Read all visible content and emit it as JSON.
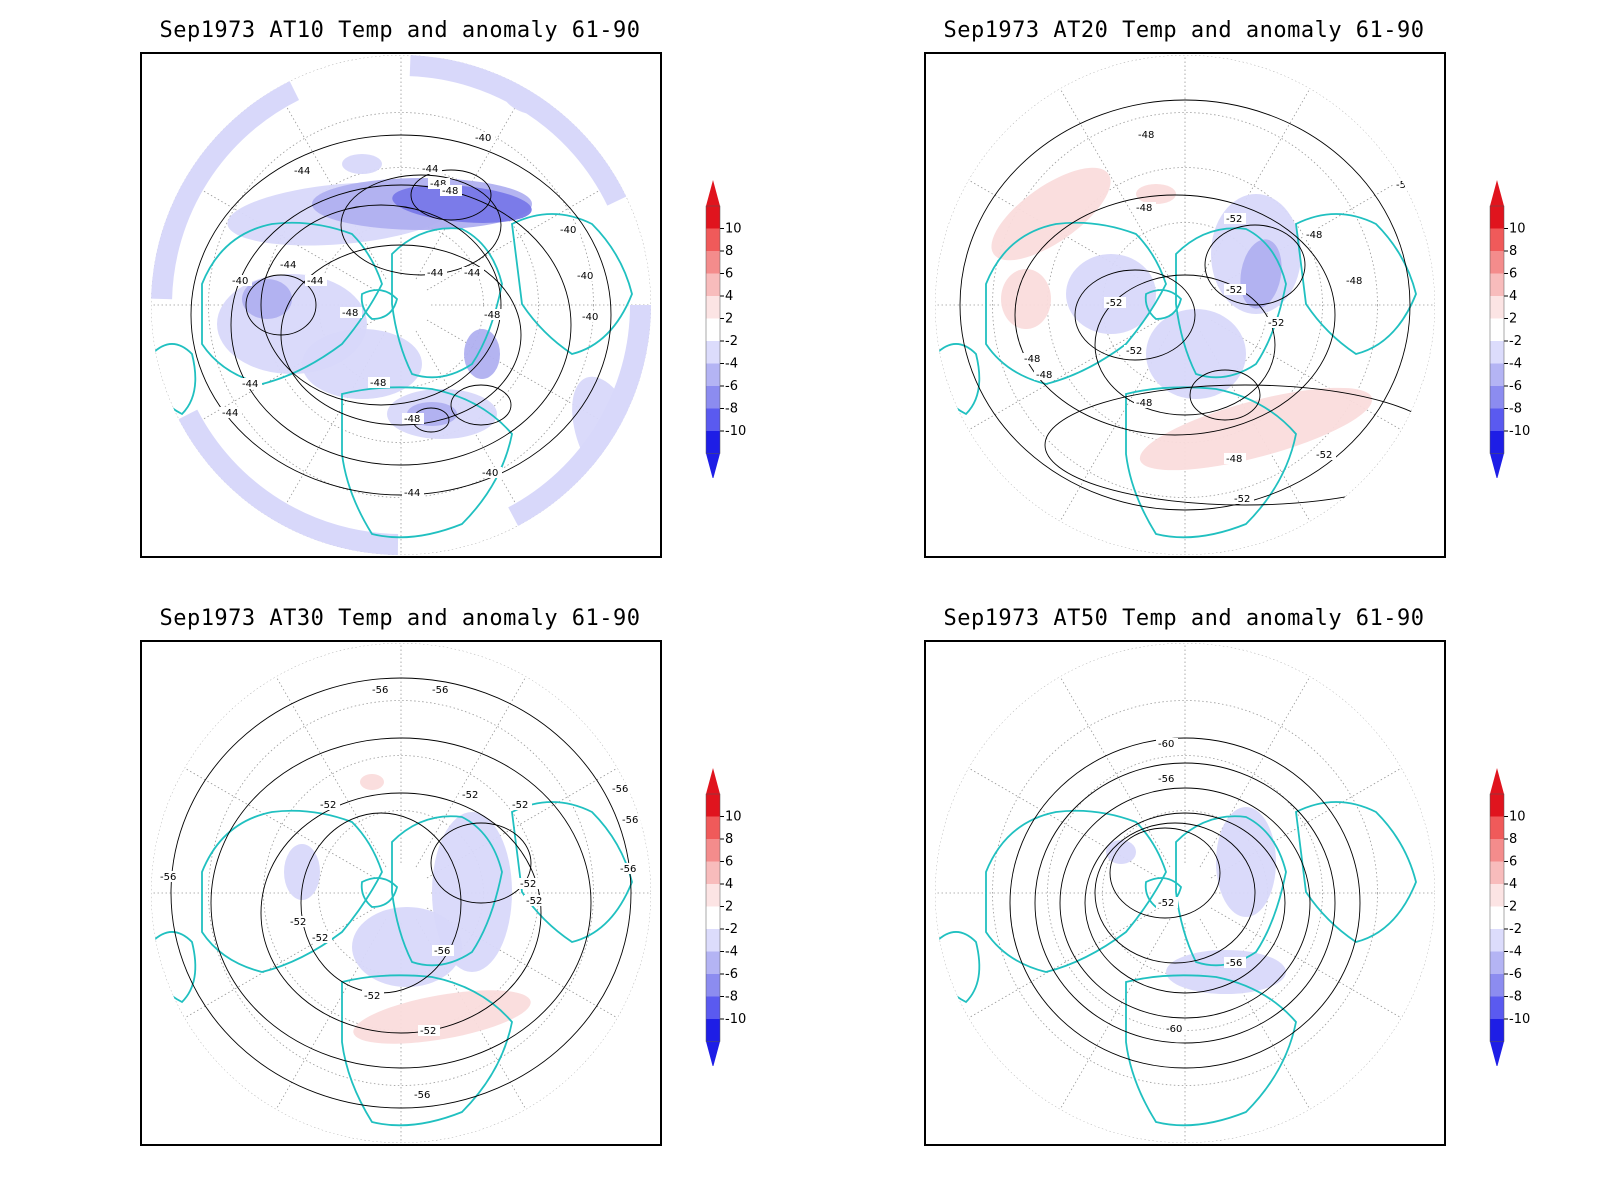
{
  "panels": [
    {
      "title": "Sep1973 AT10 Temp and anomaly 61-90",
      "contour_labels": [
        "-40",
        "-44",
        "-48",
        "-40",
        "-44",
        "-48",
        "-44",
        "-44",
        "-48",
        "-48",
        "-44",
        "-44",
        "-48",
        "-40",
        "-40",
        "-44",
        "-44",
        "-48",
        "-40",
        "-40",
        "-44"
      ],
      "shading": [
        {
          "sign": "neg",
          "level": "-2"
        },
        {
          "sign": "neg",
          "level": "-4"
        },
        {
          "sign": "neg",
          "level": "-6"
        }
      ]
    },
    {
      "title": "Sep1973 AT20 Temp and anomaly 61-90",
      "contour_labels": [
        "-48",
        "-48",
        "-52",
        "-48",
        "-52",
        "-52",
        "-52",
        "-52",
        "-48",
        "-48",
        "-48",
        "-52",
        "-48",
        "-52",
        "-52",
        "-48"
      ],
      "shading": [
        {
          "sign": "pos",
          "level": "2"
        },
        {
          "sign": "neg",
          "level": "-2"
        },
        {
          "sign": "neg",
          "level": "-4"
        }
      ]
    },
    {
      "title": "Sep1973 AT30 Temp and anomaly 61-90",
      "contour_labels": [
        "-56",
        "-56",
        "-52",
        "-52",
        "-52",
        "-56",
        "-56",
        "-56",
        "-56",
        "-52",
        "-52",
        "-52",
        "-52",
        "-56",
        "-52",
        "-52",
        "-56"
      ],
      "shading": [
        {
          "sign": "pos",
          "level": "2"
        },
        {
          "sign": "neg",
          "level": "-2"
        }
      ]
    },
    {
      "title": "Sep1973 AT50 Temp and anomaly 61-90",
      "contour_labels": [
        "-60",
        "-56",
        "-52",
        "-56",
        "-60"
      ],
      "shading": [
        {
          "sign": "neg",
          "level": "-2"
        }
      ]
    }
  ],
  "colorbar": {
    "labels": [
      "10",
      "8",
      "6",
      "4",
      "2",
      "-2",
      "-4",
      "-6",
      "-8",
      "-10"
    ],
    "colors": [
      "#e0141e",
      "#f05a5a",
      "#f48c8c",
      "#f8bcbc",
      "#fce4e4",
      "#ffffff",
      "#dcdcfc",
      "#b4b4f4",
      "#8c8cf0",
      "#5a5af0",
      "#1e1ee6"
    ]
  },
  "colors": {
    "coast": "#20c0c0",
    "contour": "#000000",
    "grid": "#999999",
    "neg_light": "#d8d8fa",
    "neg_mid": "#b0b0f0",
    "neg_dark": "#7878e8",
    "pos_light": "#fadcdc"
  }
}
